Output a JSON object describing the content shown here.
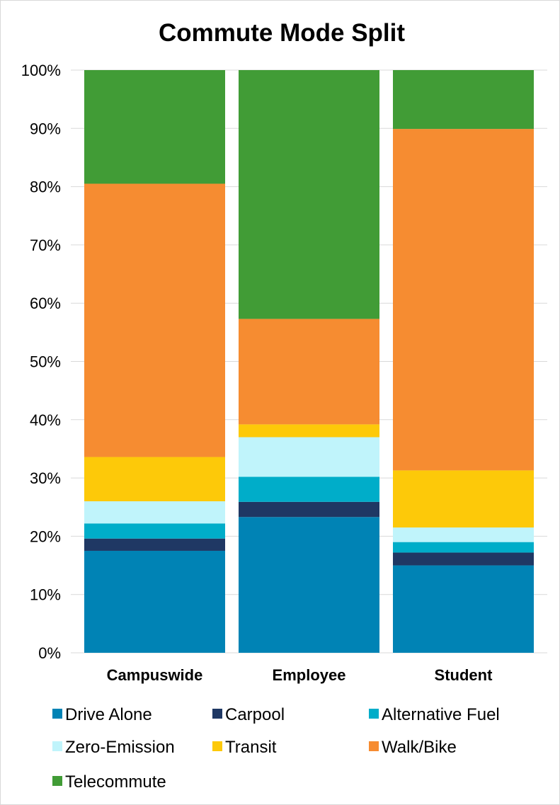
{
  "chart_data": {
    "type": "bar",
    "stacked": true,
    "percent": true,
    "title": "Commute Mode Split",
    "xlabel": "",
    "ylabel": "",
    "ylim": [
      0,
      100
    ],
    "yticks": [
      "0%",
      "10%",
      "20%",
      "30%",
      "40%",
      "50%",
      "60%",
      "70%",
      "80%",
      "90%",
      "100%"
    ],
    "grid": true,
    "legend_position": "bottom",
    "categories": [
      "Campuswide",
      "Employee",
      "Student"
    ],
    "series": [
      {
        "name": "Drive Alone",
        "color": "#0083b5",
        "values": [
          17.5,
          23.3,
          15.0
        ]
      },
      {
        "name": "Carpool",
        "color": "#1f3864",
        "values": [
          2.1,
          2.6,
          2.2
        ]
      },
      {
        "name": "Alternative Fuel",
        "color": "#00adc9",
        "values": [
          2.6,
          4.3,
          1.8
        ]
      },
      {
        "name": "Zero-Emission",
        "color": "#c0f4fb",
        "values": [
          3.8,
          6.8,
          2.5
        ]
      },
      {
        "name": "Transit",
        "color": "#fdc909",
        "values": [
          7.6,
          2.2,
          9.8
        ]
      },
      {
        "name": "Walk/Bike",
        "color": "#f68c31",
        "values": [
          46.9,
          18.1,
          58.6
        ]
      },
      {
        "name": "Telecommute",
        "color": "#419c36",
        "values": [
          19.5,
          42.7,
          10.1
        ]
      }
    ]
  }
}
